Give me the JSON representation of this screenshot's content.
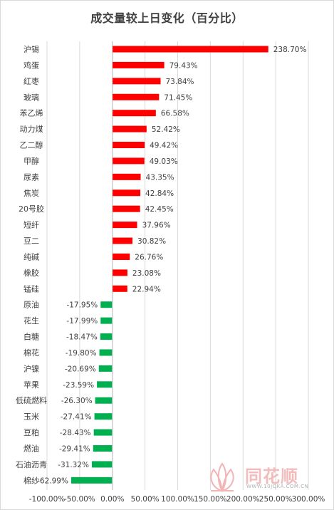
{
  "title": "成交量较上日变化（百分比）",
  "watermark": {
    "brand": "同花顺",
    "url": "WWW.10JQKA.COM.CN"
  },
  "colors": {
    "positive": "#ff0000",
    "negative": "#00b050",
    "grid": "#d9d9d9",
    "text": "#404040"
  },
  "chart_data": {
    "type": "bar",
    "orientation": "horizontal",
    "title": "成交量较上日变化（百分比）",
    "categories": [
      "沪锡",
      "鸡蛋",
      "红枣",
      "玻璃",
      "苯乙烯",
      "动力煤",
      "乙二醇",
      "甲醇",
      "尿素",
      "焦炭",
      "20号胶",
      "短纤",
      "豆二",
      "纯碱",
      "橡胶",
      "锰硅",
      "原油",
      "花生",
      "白糖",
      "棉花",
      "沪镍",
      "苹果",
      "低硫燃料",
      "玉米",
      "豆粕",
      "燃油",
      "石油沥青",
      "棉纱"
    ],
    "values": [
      238.7,
      79.43,
      73.84,
      71.45,
      66.58,
      52.42,
      49.42,
      49.03,
      43.35,
      42.84,
      42.45,
      37.96,
      30.82,
      26.76,
      23.08,
      22.94,
      -17.95,
      -17.99,
      -18.47,
      -19.8,
      -20.69,
      -23.59,
      -26.3,
      -27.41,
      -28.43,
      -29.41,
      -31.32,
      -62.99
    ],
    "data_labels": [
      "238.70%",
      "79.43%",
      "73.84%",
      "71.45%",
      "66.58%",
      "52.42%",
      "49.42%",
      "49.03%",
      "43.35%",
      "42.84%",
      "42.45%",
      "37.96%",
      "30.82%",
      "26.76%",
      "23.08%",
      "22.94%",
      "-17.95%",
      "-17.99%",
      "-18.47%",
      "-19.80%",
      "-20.69%",
      "-23.59%",
      "-26.30%",
      "-27.41%",
      "-28.43%",
      "-29.41%",
      "-31.32%",
      "-62.99%"
    ],
    "xlim": [
      -100,
      300
    ],
    "xticks": [
      -100,
      -50,
      0,
      50,
      100,
      150,
      200,
      250,
      300
    ],
    "xtick_labels": [
      "-100.00%",
      "-50.00%",
      "0.00%",
      "50.00%",
      "100.00%",
      "150.00%",
      "200.00%",
      "250.00%",
      "300.00%"
    ],
    "grid": true,
    "legend": false
  }
}
